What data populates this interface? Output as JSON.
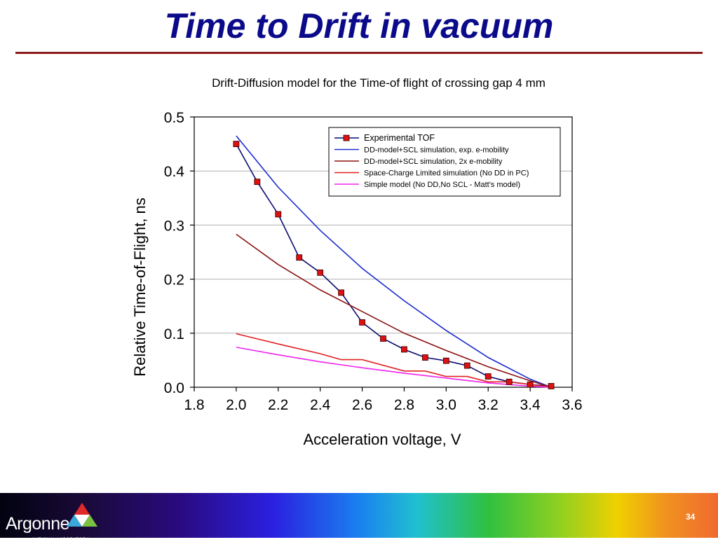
{
  "slide": {
    "title": "Time to Drift in vacuum",
    "page_number": "34",
    "logo_text": "Argonne",
    "logo_subtext": "NATIONAL LABORATORY"
  },
  "chart_data": {
    "type": "line",
    "title": "Drift-Diffusion model for the Time-of flight of crossing gap 4 mm",
    "xlabel": "Acceleration voltage, V",
    "ylabel": "Relative Time-of-Flight, ns",
    "xlim": [
      1.8,
      3.6
    ],
    "ylim": [
      0.0,
      0.5
    ],
    "xticks": [
      "1.8",
      "2.0",
      "2.2",
      "2.4",
      "2.6",
      "2.8",
      "3.0",
      "3.2",
      "3.4",
      "3.6"
    ],
    "yticks": [
      "0.0",
      "0.1",
      "0.2",
      "0.3",
      "0.4",
      "0.5"
    ],
    "grid": "horizontal",
    "legend_position": "top-right",
    "series": [
      {
        "name": "Experimental TOF",
        "color": "#0a0a70",
        "marker": "square",
        "marker_color": "#dd1111",
        "x": [
          2.0,
          2.1,
          2.2,
          2.3,
          2.4,
          2.5,
          2.6,
          2.7,
          2.8,
          2.9,
          3.0,
          3.1,
          3.2,
          3.3,
          3.4,
          3.5
        ],
        "y": [
          0.45,
          0.38,
          0.32,
          0.24,
          0.212,
          0.175,
          0.12,
          0.09,
          0.07,
          0.055,
          0.049,
          0.04,
          0.02,
          0.01,
          0.005,
          0.002
        ]
      },
      {
        "name": "DD-model+SCL simulation, exp. e-mobility",
        "color": "#1a2ad0",
        "x": [
          2.0,
          2.2,
          2.4,
          2.6,
          2.8,
          3.0,
          3.2,
          3.4,
          3.5
        ],
        "y": [
          0.465,
          0.37,
          0.29,
          0.22,
          0.16,
          0.105,
          0.055,
          0.015,
          0.0
        ]
      },
      {
        "name": "DD-model+SCL simulation, 2x e-mobility",
        "color": "#8b1010",
        "x": [
          2.0,
          2.2,
          2.4,
          2.6,
          2.8,
          3.0,
          3.2,
          3.4,
          3.5
        ],
        "y": [
          0.283,
          0.227,
          0.18,
          0.14,
          0.1,
          0.068,
          0.038,
          0.012,
          0.0
        ]
      },
      {
        "name": "Space-Charge Limited simulation (No DD in PC)",
        "color": "#e02020",
        "x": [
          2.0,
          2.2,
          2.4,
          2.5,
          2.6,
          2.8,
          2.9,
          3.0,
          3.1,
          3.2,
          3.3,
          3.4,
          3.5
        ],
        "y": [
          0.099,
          0.08,
          0.062,
          0.051,
          0.051,
          0.03,
          0.03,
          0.02,
          0.02,
          0.01,
          0.01,
          0.005,
          0.0
        ]
      },
      {
        "name": "Simple model (No DD,No SCL - Matt's model)",
        "color": "#ee22ee",
        "x": [
          2.0,
          2.2,
          2.4,
          2.6,
          2.8,
          3.0,
          3.2,
          3.4,
          3.5
        ],
        "y": [
          0.074,
          0.06,
          0.047,
          0.036,
          0.026,
          0.017,
          0.008,
          0.002,
          0.0
        ]
      }
    ]
  }
}
